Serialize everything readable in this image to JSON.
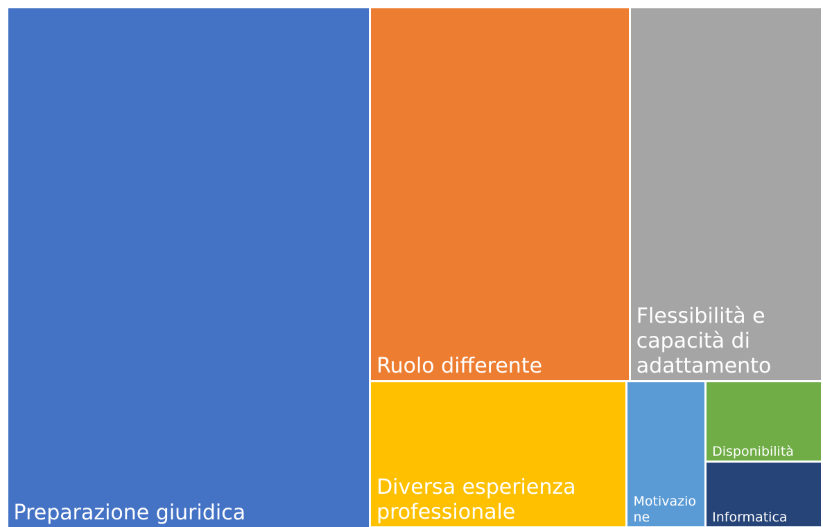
{
  "chart_data": {
    "type": "treemap",
    "categories": [
      "Preparazione giuridica",
      "Ruolo differente",
      "Flessibilità e capacità di adattamento",
      "Diversa esperienza professionale",
      "Motivazione",
      "Disponibilità",
      "Informatica"
    ],
    "values": [
      44.3,
      22.8,
      16.9,
      8.8,
      2.7,
      2.2,
      1.8
    ],
    "colors": [
      "#4472c4",
      "#ed7d31",
      "#a5a5a5",
      "#ffc000",
      "#5b9bd5",
      "#70ad47",
      "#264478"
    ]
  }
}
